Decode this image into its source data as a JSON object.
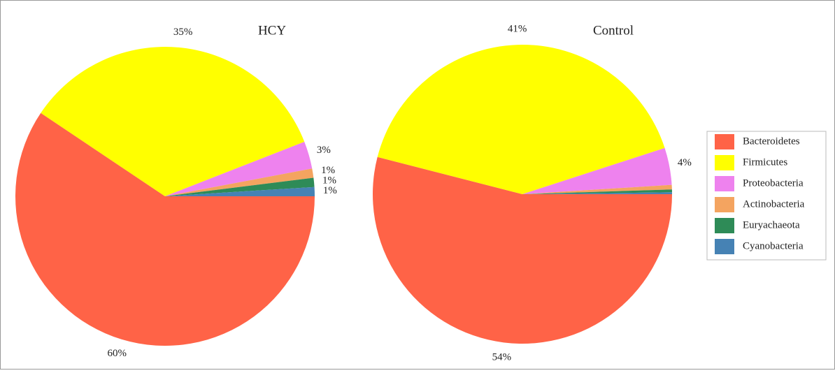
{
  "chart_data": [
    {
      "type": "pie",
      "title": "HCY",
      "categories": [
        "Bacteroidetes",
        "Firmicutes",
        "Proteobacteria",
        "Actinobacteria",
        "Euryachaeota",
        "Cyanobacteria"
      ],
      "values": [
        60,
        35,
        3,
        1,
        1,
        1
      ],
      "value_labels": [
        "60%",
        "35%",
        "3%",
        "1%",
        "1%",
        "1%"
      ],
      "colors": [
        "#ff6347",
        "#ffff00",
        "#ee82ee",
        "#f4a460",
        "#2e8b57",
        "#4682b4"
      ],
      "legend": "right"
    },
    {
      "type": "pie",
      "title": "Control",
      "categories": [
        "Bacteroidetes",
        "Firmicutes",
        "Proteobacteria",
        "Actinobacteria",
        "Euryachaeota",
        "Cyanobacteria"
      ],
      "values": [
        54,
        41,
        4,
        0.5,
        0.3,
        0.2
      ],
      "value_labels": [
        "54%",
        "41%",
        "4%",
        null,
        null,
        null
      ],
      "colors": [
        "#ff6347",
        "#ffff00",
        "#ee82ee",
        "#f4a460",
        "#2e8b57",
        "#4682b4"
      ]
    }
  ]
}
